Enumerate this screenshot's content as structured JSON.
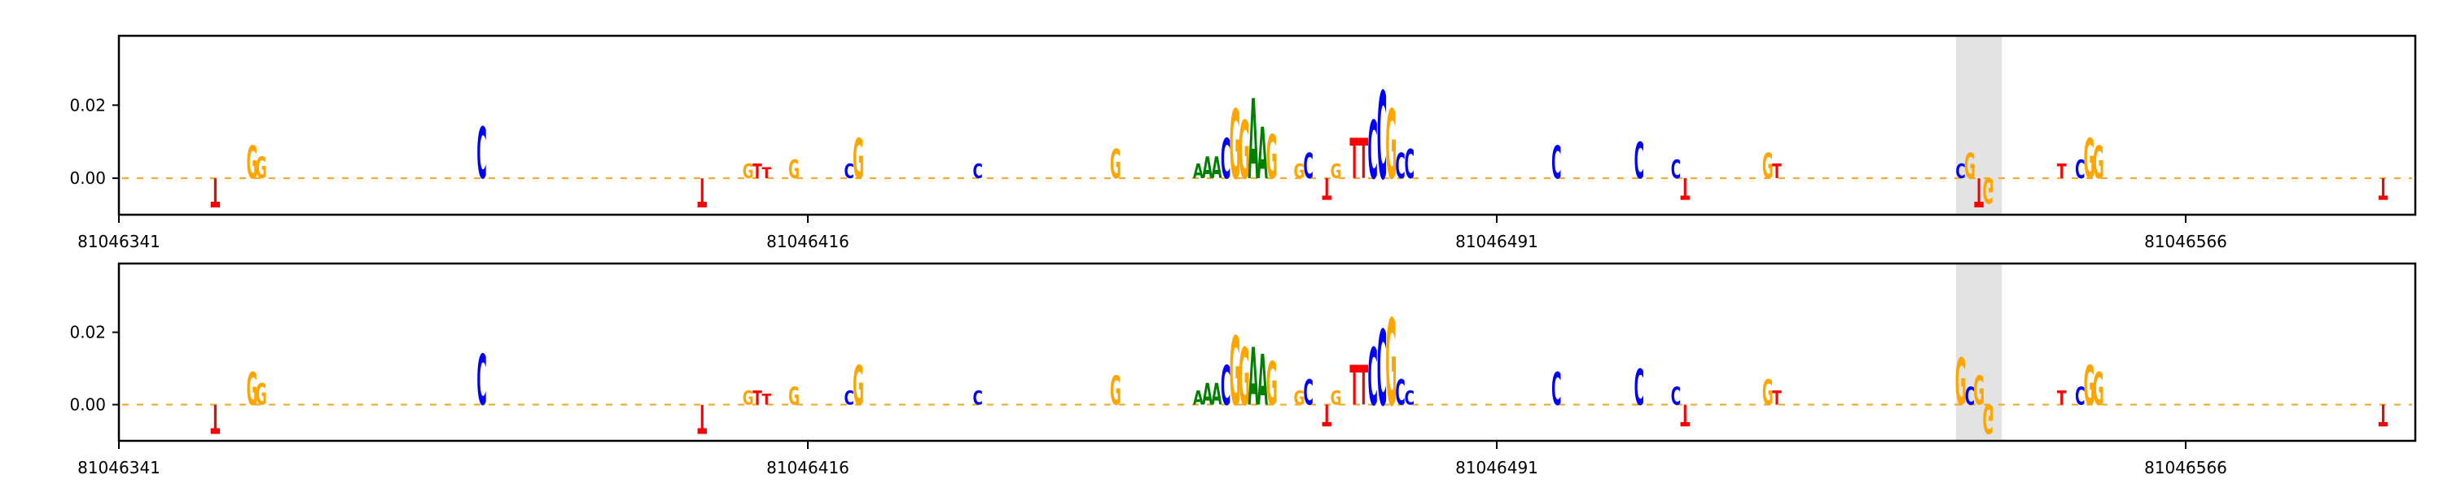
{
  "chart_data": [
    {
      "type": "sequence-logo",
      "panel": "top",
      "title": "",
      "xlabel": "",
      "ylabel": "",
      "ylim": [
        -0.01,
        0.039
      ],
      "yticks": [
        0.0,
        0.02
      ],
      "ytick_labels": [
        "0.00",
        "0.02"
      ],
      "xlim": [
        81046341,
        81046591
      ],
      "xticks": [
        81046341,
        81046416,
        81046491,
        81046566
      ],
      "xtick_labels": [
        "81046341",
        "81046416",
        "81046491",
        "81046566"
      ],
      "highlight": [
        81046541,
        81046546
      ],
      "letters": [
        {
          "pos": 81046351,
          "base": "T",
          "value": -0.008
        },
        {
          "pos": 81046355,
          "base": "G",
          "value": 0.009
        },
        {
          "pos": 81046356,
          "base": "G",
          "value": 0.006
        },
        {
          "pos": 81046380,
          "base": "C",
          "value": 0.014
        },
        {
          "pos": 81046404,
          "base": "T",
          "value": -0.008
        },
        {
          "pos": 81046409,
          "base": "G",
          "value": 0.004
        },
        {
          "pos": 81046410,
          "base": "T",
          "value": 0.004
        },
        {
          "pos": 81046411,
          "base": "T",
          "value": 0.003
        },
        {
          "pos": 81046414,
          "base": "G",
          "value": 0.005
        },
        {
          "pos": 81046420,
          "base": "C",
          "value": 0.004
        },
        {
          "pos": 81046421,
          "base": "G",
          "value": 0.011
        },
        {
          "pos": 81046434,
          "base": "C",
          "value": 0.004
        },
        {
          "pos": 81046449,
          "base": "G",
          "value": 0.008
        },
        {
          "pos": 81046458,
          "base": "A",
          "value": 0.004
        },
        {
          "pos": 81046459,
          "base": "A",
          "value": 0.006
        },
        {
          "pos": 81046460,
          "base": "A",
          "value": 0.006
        },
        {
          "pos": 81046461,
          "base": "C",
          "value": 0.011
        },
        {
          "pos": 81046462,
          "base": "G",
          "value": 0.019
        },
        {
          "pos": 81046463,
          "base": "G",
          "value": 0.016
        },
        {
          "pos": 81046464,
          "base": "A",
          "value": 0.022
        },
        {
          "pos": 81046465,
          "base": "A",
          "value": 0.014
        },
        {
          "pos": 81046466,
          "base": "G",
          "value": 0.012
        },
        {
          "pos": 81046469,
          "base": "G",
          "value": 0.004
        },
        {
          "pos": 81046470,
          "base": "C",
          "value": 0.007
        },
        {
          "pos": 81046472,
          "base": "T",
          "value": -0.006
        },
        {
          "pos": 81046473,
          "base": "G",
          "value": 0.004
        },
        {
          "pos": 81046475,
          "base": "T",
          "value": 0.011
        },
        {
          "pos": 81046476,
          "base": "T",
          "value": 0.011
        },
        {
          "pos": 81046477,
          "base": "C",
          "value": 0.016
        },
        {
          "pos": 81046478,
          "base": "C",
          "value": 0.024
        },
        {
          "pos": 81046479,
          "base": "G",
          "value": 0.019
        },
        {
          "pos": 81046480,
          "base": "C",
          "value": 0.007
        },
        {
          "pos": 81046481,
          "base": "C",
          "value": 0.008
        },
        {
          "pos": 81046497,
          "base": "C",
          "value": 0.009
        },
        {
          "pos": 81046506,
          "base": "C",
          "value": 0.01
        },
        {
          "pos": 81046510,
          "base": "C",
          "value": 0.005
        },
        {
          "pos": 81046511,
          "base": "T",
          "value": -0.006
        },
        {
          "pos": 81046520,
          "base": "G",
          "value": 0.007
        },
        {
          "pos": 81046521,
          "base": "T",
          "value": 0.004
        },
        {
          "pos": 81046541,
          "base": "C",
          "value": 0.004
        },
        {
          "pos": 81046542,
          "base": "G",
          "value": 0.007
        },
        {
          "pos": 81046543,
          "base": "T",
          "value": -0.008
        },
        {
          "pos": 81046544,
          "base": "G",
          "value": -0.007
        },
        {
          "pos": 81046552,
          "base": "T",
          "value": 0.004
        },
        {
          "pos": 81046554,
          "base": "C",
          "value": 0.005
        },
        {
          "pos": 81046555,
          "base": "G",
          "value": 0.011
        },
        {
          "pos": 81046556,
          "base": "G",
          "value": 0.009
        },
        {
          "pos": 81046587,
          "base": "T",
          "value": -0.006
        }
      ]
    },
    {
      "type": "sequence-logo",
      "panel": "bottom",
      "title": "",
      "xlabel": "",
      "ylabel": "",
      "ylim": [
        -0.01,
        0.039
      ],
      "yticks": [
        0.0,
        0.02
      ],
      "ytick_labels": [
        "0.00",
        "0.02"
      ],
      "xlim": [
        81046341,
        81046591
      ],
      "xticks": [
        81046341,
        81046416,
        81046491,
        81046566
      ],
      "xtick_labels": [
        "81046341",
        "81046416",
        "81046491",
        "81046566"
      ],
      "highlight": [
        81046541,
        81046546
      ],
      "letters": [
        {
          "pos": 81046351,
          "base": "T",
          "value": -0.008
        },
        {
          "pos": 81046355,
          "base": "G",
          "value": 0.009
        },
        {
          "pos": 81046356,
          "base": "G",
          "value": 0.006
        },
        {
          "pos": 81046380,
          "base": "C",
          "value": 0.014
        },
        {
          "pos": 81046404,
          "base": "T",
          "value": -0.008
        },
        {
          "pos": 81046409,
          "base": "G",
          "value": 0.004
        },
        {
          "pos": 81046410,
          "base": "T",
          "value": 0.004
        },
        {
          "pos": 81046411,
          "base": "T",
          "value": 0.003
        },
        {
          "pos": 81046414,
          "base": "G",
          "value": 0.005
        },
        {
          "pos": 81046420,
          "base": "C",
          "value": 0.004
        },
        {
          "pos": 81046421,
          "base": "G",
          "value": 0.011
        },
        {
          "pos": 81046434,
          "base": "C",
          "value": 0.004
        },
        {
          "pos": 81046449,
          "base": "G",
          "value": 0.008
        },
        {
          "pos": 81046458,
          "base": "A",
          "value": 0.004
        },
        {
          "pos": 81046459,
          "base": "A",
          "value": 0.006
        },
        {
          "pos": 81046460,
          "base": "A",
          "value": 0.006
        },
        {
          "pos": 81046461,
          "base": "C",
          "value": 0.011
        },
        {
          "pos": 81046462,
          "base": "G",
          "value": 0.019
        },
        {
          "pos": 81046463,
          "base": "G",
          "value": 0.016
        },
        {
          "pos": 81046464,
          "base": "A",
          "value": 0.016
        },
        {
          "pos": 81046465,
          "base": "A",
          "value": 0.014
        },
        {
          "pos": 81046466,
          "base": "G",
          "value": 0.012
        },
        {
          "pos": 81046469,
          "base": "G",
          "value": 0.004
        },
        {
          "pos": 81046470,
          "base": "C",
          "value": 0.007
        },
        {
          "pos": 81046472,
          "base": "T",
          "value": -0.006
        },
        {
          "pos": 81046473,
          "base": "G",
          "value": 0.004
        },
        {
          "pos": 81046475,
          "base": "T",
          "value": 0.011
        },
        {
          "pos": 81046476,
          "base": "T",
          "value": 0.011
        },
        {
          "pos": 81046477,
          "base": "C",
          "value": 0.016
        },
        {
          "pos": 81046478,
          "base": "C",
          "value": 0.021
        },
        {
          "pos": 81046479,
          "base": "G",
          "value": 0.024
        },
        {
          "pos": 81046480,
          "base": "C",
          "value": 0.007
        },
        {
          "pos": 81046481,
          "base": "C",
          "value": 0.004
        },
        {
          "pos": 81046497,
          "base": "C",
          "value": 0.009
        },
        {
          "pos": 81046506,
          "base": "C",
          "value": 0.01
        },
        {
          "pos": 81046510,
          "base": "C",
          "value": 0.005
        },
        {
          "pos": 81046511,
          "base": "T",
          "value": -0.006
        },
        {
          "pos": 81046520,
          "base": "G",
          "value": 0.007
        },
        {
          "pos": 81046521,
          "base": "T",
          "value": 0.004
        },
        {
          "pos": 81046541,
          "base": "G",
          "value": 0.013
        },
        {
          "pos": 81046542,
          "base": "C",
          "value": 0.005
        },
        {
          "pos": 81046543,
          "base": "G",
          "value": 0.008
        },
        {
          "pos": 81046544,
          "base": "G",
          "value": -0.008
        },
        {
          "pos": 81046552,
          "base": "T",
          "value": 0.004
        },
        {
          "pos": 81046554,
          "base": "C",
          "value": 0.005
        },
        {
          "pos": 81046555,
          "base": "G",
          "value": 0.011
        },
        {
          "pos": 81046556,
          "base": "G",
          "value": 0.009
        },
        {
          "pos": 81046587,
          "base": "T",
          "value": -0.006
        }
      ]
    }
  ],
  "colors": {
    "A": "#008000",
    "C": "#0000ff",
    "G": "#ffa500",
    "T": "#ff0000",
    "highlight": "#e3e3e3",
    "axis": "#000000"
  }
}
